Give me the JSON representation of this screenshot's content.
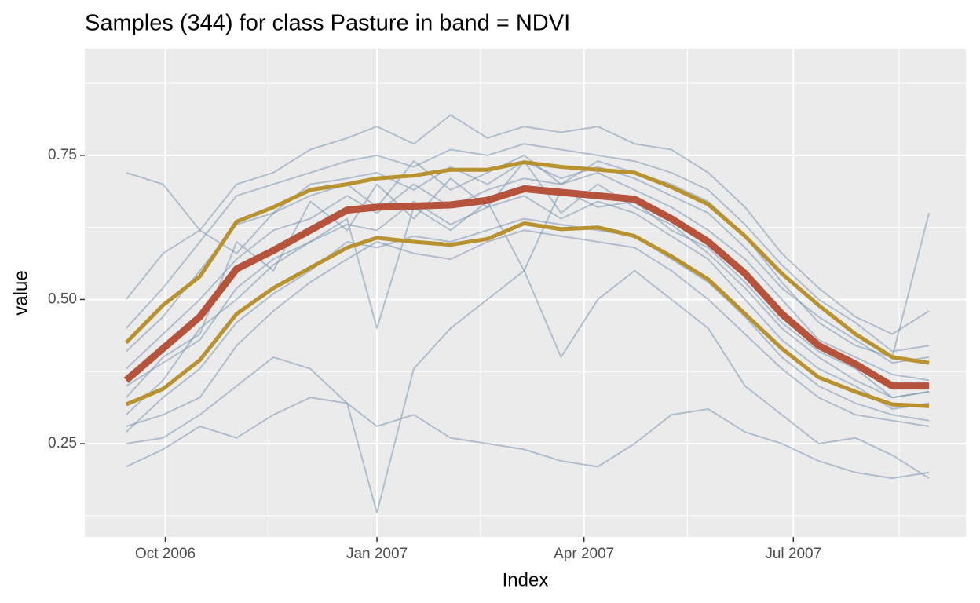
{
  "chart_data": {
    "type": "line",
    "title": "Samples (344) for class Pasture in band = NDVI",
    "x_label": "Index",
    "y_label": "value",
    "x": [
      "2006-09-14",
      "2006-09-30",
      "2006-10-16",
      "2006-11-01",
      "2006-11-17",
      "2006-12-03",
      "2006-12-19",
      "2007-01-01",
      "2007-01-17",
      "2007-02-02",
      "2007-02-18",
      "2007-03-06",
      "2007-03-22",
      "2007-04-07",
      "2007-04-23",
      "2007-05-09",
      "2007-05-25",
      "2007-06-10",
      "2007-06-26",
      "2007-07-12",
      "2007-07-28",
      "2007-08-13",
      "2007-08-29"
    ],
    "xlim": [
      "2006-08-27",
      "2007-09-14"
    ],
    "xticks": [
      {
        "value": "2006-10-01",
        "label": "Oct 2006"
      },
      {
        "value": "2007-01-01",
        "label": "Jan 2007"
      },
      {
        "value": "2007-04-01",
        "label": "Apr 2007"
      },
      {
        "value": "2007-07-01",
        "label": "Jul 2007"
      }
    ],
    "xminorticks": [
      "2006-11-15",
      "2007-02-15",
      "2007-05-16",
      "2007-08-16"
    ],
    "ylim": [
      0.088,
      0.935
    ],
    "yticks": [
      {
        "value": 0.25,
        "label": "0.25"
      },
      {
        "value": 0.5,
        "label": "0.50"
      },
      {
        "value": 0.75,
        "label": "0.75"
      }
    ],
    "yminorticks": [
      0.125,
      0.375,
      0.625,
      0.875
    ],
    "grid": true,
    "series": [
      {
        "color": "#7590ad",
        "width": 2,
        "opacity": 0.5,
        "values": [
          0.45,
          0.52,
          0.6,
          0.68,
          0.7,
          0.72,
          0.74,
          0.75,
          0.73,
          0.76,
          0.75,
          0.77,
          0.76,
          0.75,
          0.74,
          0.72,
          0.69,
          0.63,
          0.56,
          0.5,
          0.46,
          0.41,
          0.42
        ]
      },
      {
        "color": "#7590ad",
        "width": 2,
        "opacity": 0.5,
        "values": [
          0.28,
          0.3,
          0.33,
          0.42,
          0.48,
          0.53,
          0.57,
          0.6,
          0.58,
          0.57,
          0.6,
          0.62,
          0.61,
          0.6,
          0.59,
          0.55,
          0.5,
          0.44,
          0.38,
          0.33,
          0.3,
          0.29,
          0.28
        ]
      },
      {
        "color": "#7590ad",
        "width": 2,
        "opacity": 0.5,
        "values": [
          0.38,
          0.44,
          0.5,
          0.57,
          0.62,
          0.64,
          0.68,
          0.65,
          0.7,
          0.66,
          0.69,
          0.71,
          0.7,
          0.72,
          0.69,
          0.66,
          0.62,
          0.57,
          0.5,
          0.43,
          0.4,
          0.37,
          0.36
        ]
      },
      {
        "color": "#7590ad",
        "width": 2,
        "opacity": 0.5,
        "values": [
          0.33,
          0.4,
          0.44,
          0.6,
          0.55,
          0.67,
          0.62,
          0.7,
          0.64,
          0.71,
          0.66,
          0.74,
          0.65,
          0.7,
          0.66,
          0.63,
          0.58,
          0.52,
          0.45,
          0.4,
          0.36,
          0.33,
          0.34
        ]
      },
      {
        "color": "#7590ad",
        "width": 2,
        "opacity": 0.5,
        "values": [
          0.25,
          0.26,
          0.3,
          0.35,
          0.4,
          0.38,
          0.32,
          0.28,
          0.3,
          0.26,
          0.25,
          0.24,
          0.22,
          0.21,
          0.25,
          0.3,
          0.31,
          0.27,
          0.25,
          0.22,
          0.2,
          0.19,
          0.2
        ]
      },
      {
        "color": "#7590ad",
        "width": 2,
        "opacity": 0.5,
        "values": [
          0.3,
          0.36,
          0.45,
          0.5,
          0.56,
          0.6,
          0.63,
          0.62,
          0.67,
          0.63,
          0.66,
          0.68,
          0.64,
          0.67,
          0.65,
          0.61,
          0.57,
          0.5,
          0.43,
          0.38,
          0.35,
          0.31,
          0.32
        ]
      },
      {
        "color": "#7590ad",
        "width": 2,
        "opacity": 0.5,
        "values": [
          0.41,
          0.47,
          0.55,
          0.63,
          0.65,
          0.7,
          0.71,
          0.72,
          0.69,
          0.73,
          0.7,
          0.74,
          0.71,
          0.73,
          0.71,
          0.68,
          0.65,
          0.59,
          0.52,
          0.47,
          0.43,
          0.39,
          0.4
        ]
      },
      {
        "color": "#7590ad",
        "width": 2,
        "opacity": 0.5,
        "values": [
          0.35,
          0.39,
          0.43,
          0.52,
          0.57,
          0.6,
          0.64,
          0.45,
          0.66,
          0.62,
          0.67,
          0.55,
          0.69,
          0.66,
          0.67,
          0.62,
          0.59,
          0.53,
          0.46,
          0.41,
          0.38,
          0.33,
          0.34
        ]
      },
      {
        "color": "#7590ad",
        "width": 2,
        "opacity": 0.5,
        "values": [
          0.5,
          0.58,
          0.62,
          0.7,
          0.72,
          0.76,
          0.78,
          0.8,
          0.77,
          0.82,
          0.78,
          0.8,
          0.79,
          0.8,
          0.77,
          0.76,
          0.72,
          0.66,
          0.58,
          0.52,
          0.47,
          0.44,
          0.48
        ]
      },
      {
        "color": "#7590ad",
        "width": 2,
        "opacity": 0.5,
        "values": [
          0.27,
          0.33,
          0.38,
          0.46,
          0.51,
          0.55,
          0.6,
          0.59,
          0.61,
          0.6,
          0.62,
          0.64,
          0.63,
          0.62,
          0.61,
          0.57,
          0.53,
          0.47,
          0.4,
          0.35,
          0.32,
          0.3,
          0.29
        ]
      },
      {
        "color": "#7590ad",
        "width": 2,
        "opacity": 0.5,
        "values": [
          0.72,
          0.7,
          0.62,
          0.58,
          0.65,
          0.68,
          0.7,
          0.66,
          0.74,
          0.69,
          0.72,
          0.75,
          0.7,
          0.74,
          0.72,
          0.7,
          0.67,
          0.61,
          0.53,
          0.46,
          0.42,
          0.4,
          0.65
        ]
      },
      {
        "color": "#7590ad",
        "width": 2,
        "opacity": 0.5,
        "values": [
          0.21,
          0.24,
          0.28,
          0.26,
          0.3,
          0.33,
          0.32,
          0.13,
          0.38,
          0.45,
          0.5,
          0.55,
          0.4,
          0.5,
          0.55,
          0.5,
          0.45,
          0.35,
          0.3,
          0.25,
          0.26,
          0.23,
          0.19
        ]
      },
      {
        "color": "#b8922f",
        "width": 5,
        "opacity": 1,
        "values": [
          0.425,
          0.49,
          0.54,
          0.635,
          0.66,
          0.69,
          0.7,
          0.71,
          0.715,
          0.725,
          0.725,
          0.738,
          0.73,
          0.725,
          0.72,
          0.695,
          0.665,
          0.61,
          0.545,
          0.49,
          0.44,
          0.4,
          0.39
        ]
      },
      {
        "color": "#b8922f",
        "width": 5,
        "opacity": 1,
        "values": [
          0.318,
          0.345,
          0.395,
          0.475,
          0.52,
          0.555,
          0.59,
          0.607,
          0.6,
          0.595,
          0.605,
          0.632,
          0.622,
          0.625,
          0.61,
          0.575,
          0.535,
          0.475,
          0.415,
          0.365,
          0.34,
          0.318,
          0.315
        ]
      },
      {
        "color": "#b5533c",
        "width": 9,
        "opacity": 1,
        "values": [
          0.36,
          0.415,
          0.47,
          0.553,
          0.585,
          0.62,
          0.655,
          0.66,
          0.662,
          0.664,
          0.672,
          0.692,
          0.686,
          0.68,
          0.674,
          0.64,
          0.6,
          0.545,
          0.475,
          0.42,
          0.388,
          0.35,
          0.35
        ]
      }
    ]
  }
}
